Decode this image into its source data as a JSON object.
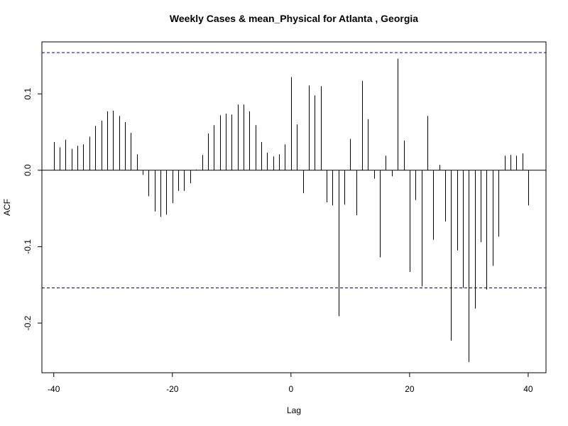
{
  "chart_data": {
    "type": "bar",
    "title": "Weekly Cases & mean_Physical for Atlanta , Georgia",
    "xlabel": "Lag",
    "ylabel": "ACF",
    "xlim": [
      -42,
      43
    ],
    "ylim": [
      -0.265,
      0.168
    ],
    "xticks": [
      -40,
      -20,
      0,
      20,
      40
    ],
    "xtick_labels": [
      "-40",
      "-20",
      "0",
      "20",
      "40"
    ],
    "yticks": [
      -0.2,
      -0.1,
      0.0,
      0.1
    ],
    "ytick_labels": [
      "-0.2",
      "-0.1",
      "0.0",
      "0.1"
    ],
    "confidence_bound": 0.154,
    "colors": {
      "bars": "#000000",
      "confidence": "#0000cc",
      "zero_line": "#000000"
    },
    "lags": [
      -40,
      -39,
      -38,
      -37,
      -36,
      -35,
      -34,
      -33,
      -32,
      -31,
      -30,
      -29,
      -28,
      -27,
      -26,
      -25,
      -24,
      -23,
      -22,
      -21,
      -20,
      -19,
      -18,
      -17,
      -16,
      -15,
      -14,
      -13,
      -12,
      -11,
      -10,
      -9,
      -8,
      -7,
      -6,
      -5,
      -4,
      -3,
      -2,
      -1,
      0,
      1,
      2,
      3,
      4,
      5,
      6,
      7,
      8,
      9,
      10,
      11,
      12,
      13,
      14,
      15,
      16,
      17,
      18,
      19,
      20,
      21,
      22,
      23,
      24,
      25,
      26,
      27,
      28,
      29,
      30,
      31,
      32,
      33,
      34,
      35,
      36,
      37,
      38,
      39,
      40
    ],
    "values": [
      0.037,
      0.03,
      0.04,
      0.028,
      0.032,
      0.034,
      0.044,
      0.058,
      0.065,
      0.077,
      0.078,
      0.071,
      0.063,
      0.049,
      0.021,
      -0.006,
      -0.034,
      -0.054,
      -0.061,
      -0.058,
      -0.043,
      -0.027,
      -0.027,
      -0.017,
      0.001,
      0.02,
      0.048,
      0.059,
      0.072,
      0.074,
      0.073,
      0.086,
      0.086,
      0.077,
      0.059,
      0.037,
      0.023,
      0.018,
      0.021,
      0.034,
      0.122,
      0.06,
      -0.03,
      0.111,
      0.098,
      0.11,
      -0.042,
      -0.046,
      -0.191,
      -0.045,
      0.041,
      -0.059,
      0.117,
      0.067,
      -0.011,
      -0.114,
      0.019,
      -0.008,
      0.146,
      0.039,
      -0.133,
      -0.039,
      -0.152,
      0.071,
      -0.091,
      0.007,
      -0.067,
      -0.223,
      -0.105,
      -0.154,
      -0.251,
      -0.181,
      -0.094,
      -0.156,
      -0.125,
      -0.087,
      0.019,
      0.02,
      0.019,
      0.022,
      -0.046
    ]
  }
}
